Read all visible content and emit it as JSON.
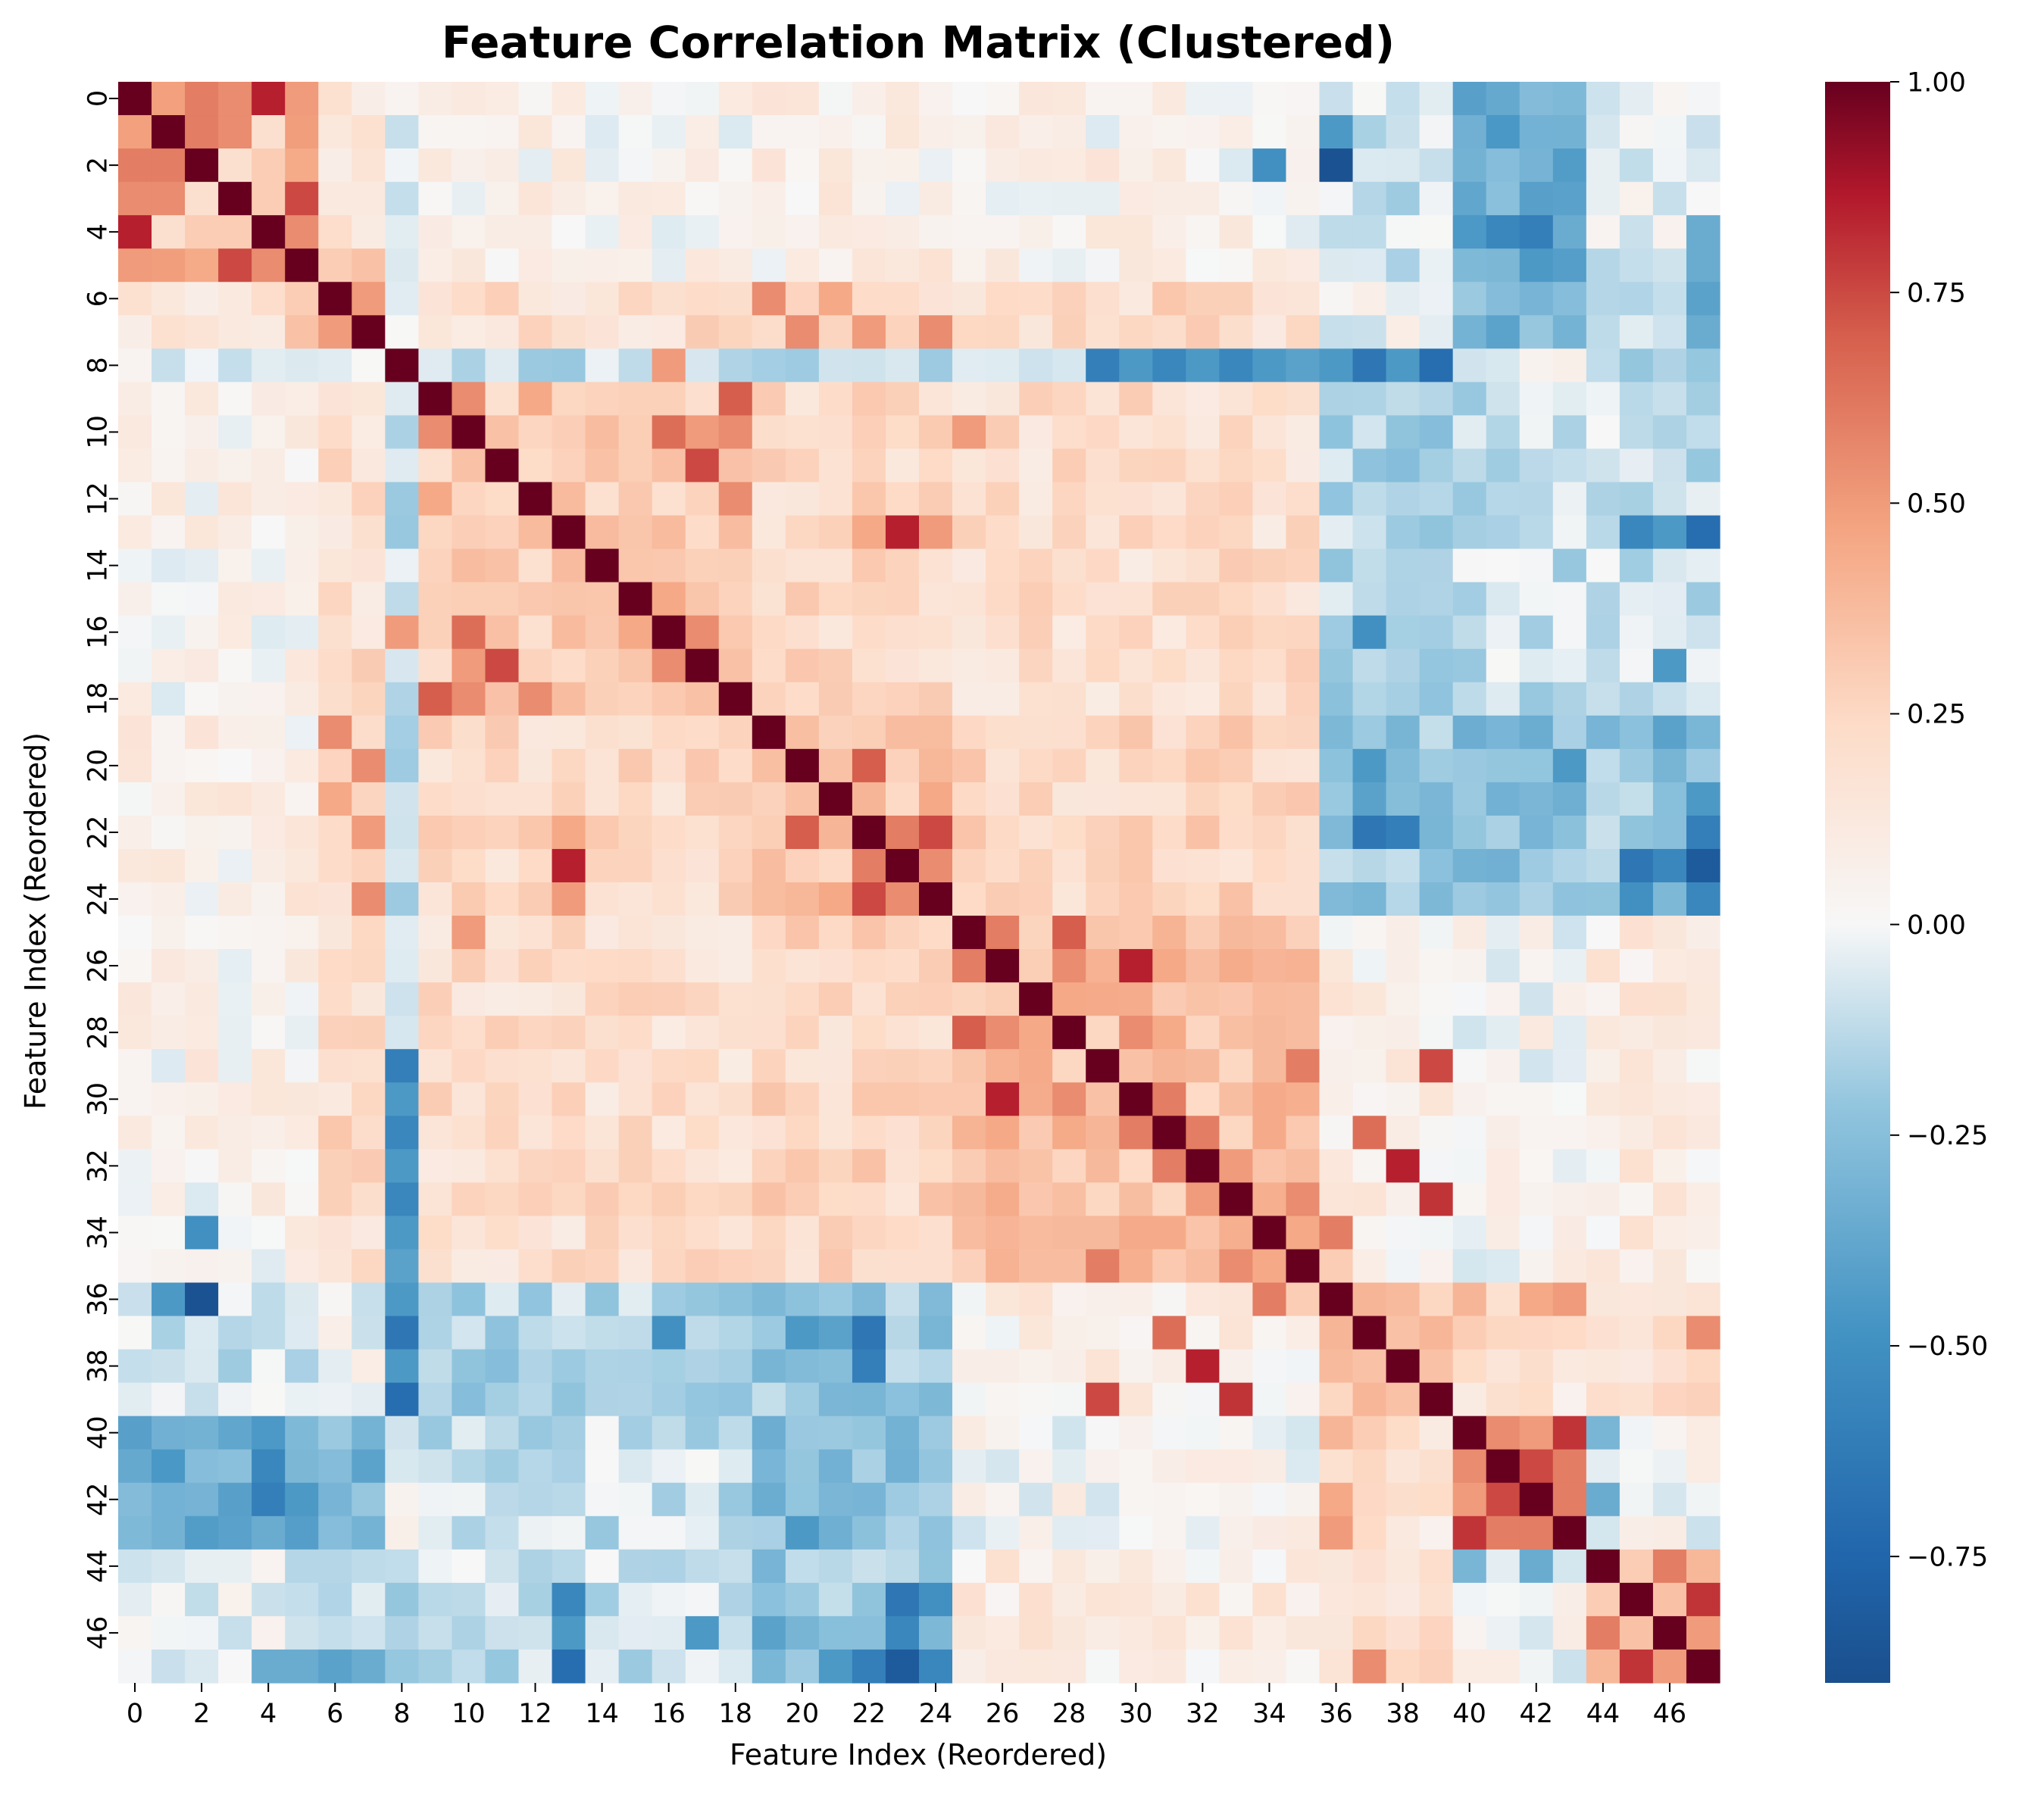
{
  "chart_data": {
    "type": "heatmap",
    "title": "Feature Correlation Matrix (Clustered)",
    "xlabel": "Feature Index (Reordered)",
    "ylabel": "Feature Index (Reordered)",
    "n": 48,
    "tick_labels": [
      "0",
      "2",
      "4",
      "6",
      "8",
      "10",
      "12",
      "14",
      "16",
      "18",
      "20",
      "22",
      "24",
      "26",
      "28",
      "30",
      "32",
      "34",
      "36",
      "38",
      "40",
      "42",
      "44",
      "46"
    ],
    "tick_indices": [
      0,
      2,
      4,
      6,
      8,
      10,
      12,
      14,
      16,
      18,
      20,
      22,
      24,
      26,
      28,
      30,
      32,
      34,
      36,
      38,
      40,
      42,
      44,
      46
    ],
    "colormap": "RdBu_r",
    "vmin": -0.9,
    "vmax": 1.0,
    "colorbar_ticks": [
      1.0,
      0.75,
      0.5,
      0.25,
      0.0,
      -0.25,
      -0.5,
      -0.75
    ],
    "colorbar_labels": [
      "1.00",
      "0.75",
      "0.50",
      "0.25",
      "0.00",
      "−0.25",
      "−0.50",
      "−0.75"
    ],
    "strong_entries": [
      [
        0,
        4,
        0.85
      ],
      [
        0,
        2,
        0.6
      ],
      [
        0,
        3,
        0.55
      ],
      [
        0,
        5,
        0.5
      ],
      [
        1,
        2,
        0.6
      ],
      [
        1,
        3,
        0.55
      ],
      [
        1,
        4,
        0.2
      ],
      [
        2,
        3,
        0.2
      ],
      [
        2,
        4,
        0.3
      ],
      [
        3,
        5,
        0.75
      ],
      [
        3,
        4,
        0.3
      ],
      [
        4,
        5,
        0.55
      ],
      [
        2,
        36,
        -0.88
      ],
      [
        2,
        34,
        -0.5
      ],
      [
        1,
        36,
        -0.45
      ],
      [
        5,
        6,
        0.3
      ],
      [
        5,
        7,
        0.35
      ],
      [
        6,
        7,
        0.5
      ],
      [
        6,
        19,
        0.55
      ],
      [
        7,
        20,
        0.55
      ],
      [
        7,
        24,
        0.55
      ],
      [
        7,
        22,
        0.5
      ],
      [
        6,
        21,
        0.45
      ],
      [
        4,
        42,
        -0.6
      ],
      [
        4,
        41,
        -0.55
      ],
      [
        4,
        43,
        -0.35
      ],
      [
        5,
        42,
        -0.45
      ],
      [
        4,
        47,
        -0.35
      ],
      [
        5,
        47,
        -0.35
      ],
      [
        6,
        47,
        -0.4
      ],
      [
        7,
        47,
        -0.35
      ],
      [
        8,
        29,
        -0.6
      ],
      [
        8,
        31,
        -0.55
      ],
      [
        8,
        33,
        -0.55
      ],
      [
        8,
        37,
        -0.65
      ],
      [
        8,
        39,
        -0.7
      ],
      [
        8,
        30,
        -0.45
      ],
      [
        8,
        32,
        -0.45
      ],
      [
        8,
        34,
        -0.45
      ],
      [
        8,
        35,
        -0.4
      ],
      [
        8,
        36,
        -0.45
      ],
      [
        8,
        38,
        -0.45
      ],
      [
        8,
        16,
        0.5
      ],
      [
        8,
        9,
        -0.05
      ],
      [
        9,
        10,
        0.55
      ],
      [
        9,
        18,
        0.7
      ],
      [
        9,
        12,
        0.45
      ],
      [
        10,
        16,
        0.65
      ],
      [
        10,
        17,
        0.5
      ],
      [
        10,
        25,
        0.5
      ],
      [
        10,
        18,
        0.55
      ],
      [
        11,
        17,
        0.75
      ],
      [
        11,
        10,
        0.35
      ],
      [
        12,
        18,
        0.55
      ],
      [
        13,
        23,
        0.85
      ],
      [
        13,
        24,
        0.5
      ],
      [
        13,
        22,
        0.45
      ],
      [
        13,
        47,
        -0.7
      ],
      [
        13,
        45,
        -0.55
      ],
      [
        13,
        46,
        -0.45
      ],
      [
        15,
        16,
        0.45
      ],
      [
        16,
        17,
        0.55
      ],
      [
        17,
        18,
        0.35
      ],
      [
        16,
        37,
        -0.5
      ],
      [
        16,
        10,
        0.65
      ],
      [
        20,
        21,
        0.35
      ],
      [
        20,
        22,
        0.7
      ],
      [
        21,
        22,
        0.4
      ],
      [
        22,
        23,
        0.6
      ],
      [
        22,
        24,
        0.75
      ],
      [
        23,
        24,
        0.55
      ],
      [
        21,
        24,
        0.45
      ],
      [
        22,
        37,
        -0.65
      ],
      [
        22,
        38,
        -0.6
      ],
      [
        22,
        47,
        -0.6
      ],
      [
        23,
        47,
        -0.82
      ],
      [
        23,
        45,
        -0.65
      ],
      [
        23,
        46,
        -0.55
      ],
      [
        24,
        47,
        -0.55
      ],
      [
        24,
        45,
        -0.5
      ],
      [
        25,
        26,
        0.6
      ],
      [
        25,
        28,
        0.7
      ],
      [
        26,
        30,
        0.85
      ],
      [
        26,
        28,
        0.55
      ],
      [
        27,
        28,
        0.45
      ],
      [
        28,
        30,
        0.55
      ],
      [
        29,
        39,
        0.75
      ],
      [
        29,
        35,
        0.6
      ],
      [
        30,
        31,
        0.6
      ],
      [
        31,
        32,
        0.6
      ],
      [
        32,
        38,
        0.85
      ],
      [
        33,
        39,
        0.8
      ],
      [
        32,
        33,
        0.5
      ],
      [
        34,
        36,
        0.6
      ],
      [
        31,
        37,
        0.65
      ],
      [
        33,
        35,
        0.55
      ],
      [
        34,
        35,
        0.45
      ],
      [
        35,
        36,
        0.3
      ],
      [
        36,
        37,
        0.4
      ],
      [
        37,
        38,
        0.35
      ],
      [
        38,
        39,
        0.35
      ],
      [
        37,
        47,
        0.55
      ],
      [
        40,
        41,
        0.55
      ],
      [
        40,
        42,
        0.5
      ],
      [
        40,
        43,
        0.8
      ],
      [
        41,
        42,
        0.75
      ],
      [
        41,
        43,
        0.6
      ],
      [
        42,
        43,
        0.6
      ],
      [
        40,
        44,
        -0.3
      ],
      [
        42,
        44,
        -0.35
      ],
      [
        44,
        46,
        0.6
      ],
      [
        45,
        47,
        0.8
      ],
      [
        44,
        45,
        0.3
      ],
      [
        45,
        46,
        0.35
      ],
      [
        46,
        47,
        0.5
      ],
      [
        36,
        43,
        0.5
      ],
      [
        36,
        42,
        0.45
      ],
      [
        36,
        40,
        0.4
      ],
      [
        37,
        40,
        0.3
      ],
      [
        20,
        37,
        -0.45
      ],
      [
        20,
        43,
        -0.45
      ],
      [
        21,
        47,
        -0.45
      ],
      [
        21,
        37,
        -0.4
      ],
      [
        19,
        46,
        -0.4
      ],
      [
        17,
        46,
        -0.45
      ]
    ]
  }
}
